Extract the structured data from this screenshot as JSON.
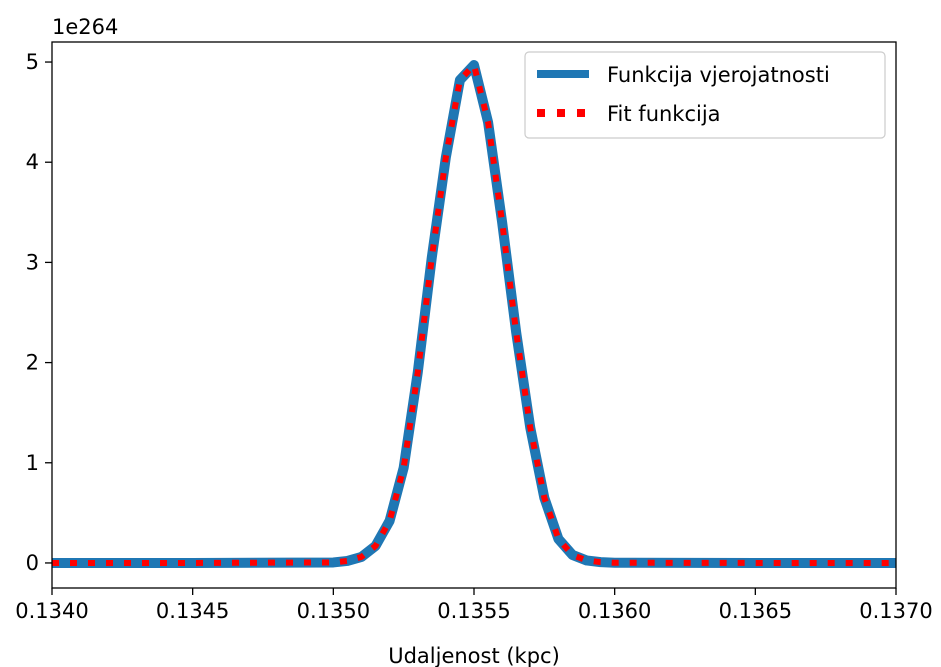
{
  "chart_data": {
    "type": "line",
    "title": "",
    "xlabel": "Udaljenost (kpc)",
    "ylabel": "",
    "y_offset_label": "1e264",
    "xlim": [
      0.134,
      0.137
    ],
    "ylim": [
      -0.25,
      5.2
    ],
    "grid": false,
    "legend_position": "top-right",
    "x_ticks": [
      "0.1340",
      "0.1345",
      "0.1350",
      "0.1355",
      "0.1360",
      "0.1365",
      "0.1370"
    ],
    "x_tick_values": [
      0.134,
      0.1345,
      0.135,
      0.1355,
      0.136,
      0.1365,
      0.137
    ],
    "y_ticks": [
      "0",
      "1",
      "2",
      "3",
      "4",
      "5"
    ],
    "y_tick_values": [
      0,
      1,
      2,
      3,
      4,
      5
    ],
    "series": [
      {
        "name": "Funkcija vjerojatnosti",
        "color": "#1f77b4",
        "style": "solid",
        "x": [
          0.134,
          0.1345,
          0.135,
          0.13505,
          0.1351,
          0.13515,
          0.1352,
          0.13525,
          0.1353,
          0.13535,
          0.1354,
          0.13545,
          0.1355,
          0.13555,
          0.1356,
          0.13565,
          0.1357,
          0.13575,
          0.1358,
          0.13585,
          0.1359,
          0.13595,
          0.136,
          0.1365,
          0.137
        ],
        "y": [
          0,
          0,
          0.005,
          0.02,
          0.06,
          0.17,
          0.42,
          0.95,
          1.9,
          3.05,
          4.05,
          4.82,
          4.97,
          4.4,
          3.4,
          2.3,
          1.35,
          0.65,
          0.24,
          0.08,
          0.025,
          0.008,
          0.002,
          0,
          0
        ]
      },
      {
        "name": "Fit funkcija",
        "color": "#ff0000",
        "style": "dotted",
        "x": [
          0.134,
          0.1345,
          0.135,
          0.13505,
          0.1351,
          0.13515,
          0.1352,
          0.13525,
          0.1353,
          0.13535,
          0.1354,
          0.13545,
          0.1355,
          0.13555,
          0.1356,
          0.13565,
          0.1357,
          0.13575,
          0.1358,
          0.13585,
          0.1359,
          0.13595,
          0.136,
          0.1365,
          0.137
        ],
        "y": [
          0,
          0,
          0.005,
          0.02,
          0.06,
          0.17,
          0.42,
          0.95,
          1.9,
          3.05,
          4.05,
          4.82,
          4.97,
          4.4,
          3.4,
          2.3,
          1.35,
          0.65,
          0.24,
          0.08,
          0.025,
          0.008,
          0.002,
          0,
          0
        ]
      }
    ]
  }
}
